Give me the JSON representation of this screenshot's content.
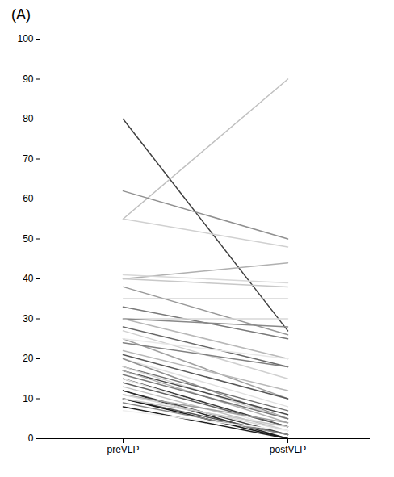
{
  "chart_data": {
    "type": "line",
    "title": "(A)",
    "categories": [
      "preVLP",
      "postVLP"
    ],
    "ylim": [
      0,
      100
    ],
    "yticks": [
      0,
      10,
      20,
      30,
      40,
      50,
      60,
      70,
      80,
      90,
      100
    ],
    "grid": false,
    "series": [
      {
        "color": "#404040",
        "values": [
          80,
          27
        ]
      },
      {
        "color": "#c0c0c0",
        "values": [
          55,
          90
        ]
      },
      {
        "color": "#d0d0d0",
        "values": [
          55,
          48
        ]
      },
      {
        "color": "#909090",
        "values": [
          62,
          50
        ]
      },
      {
        "color": "#b0b0b0",
        "values": [
          40,
          44
        ]
      },
      {
        "color": "#c8c8c8",
        "values": [
          40,
          38
        ]
      },
      {
        "color": "#d8d8d8",
        "values": [
          41,
          39
        ]
      },
      {
        "color": "#989898",
        "values": [
          38,
          26
        ]
      },
      {
        "color": "#c0c0c0",
        "values": [
          35,
          35
        ]
      },
      {
        "color": "#787878",
        "values": [
          33,
          25
        ]
      },
      {
        "color": "#d8d8d8",
        "values": [
          30,
          30
        ]
      },
      {
        "color": "#888888",
        "values": [
          30,
          28
        ]
      },
      {
        "color": "#b8b8b8",
        "values": [
          30,
          20
        ]
      },
      {
        "color": "#686868",
        "values": [
          28,
          18
        ]
      },
      {
        "color": "#d0d0d0",
        "values": [
          27,
          15
        ]
      },
      {
        "color": "#a0a0a0",
        "values": [
          25,
          10
        ]
      },
      {
        "color": "#e8e8e8",
        "values": [
          25,
          20
        ]
      },
      {
        "color": "#808080",
        "values": [
          24,
          18
        ]
      },
      {
        "color": "#b8b8b8",
        "values": [
          22,
          12
        ]
      },
      {
        "color": "#585858",
        "values": [
          21,
          10
        ]
      },
      {
        "color": "#e0e0e0",
        "values": [
          20,
          8
        ]
      },
      {
        "color": "#909090",
        "values": [
          20,
          5
        ]
      },
      {
        "color": "#707070",
        "values": [
          18,
          7
        ]
      },
      {
        "color": "#d0d0d0",
        "values": [
          18,
          5
        ]
      },
      {
        "color": "#484848",
        "values": [
          17,
          6
        ]
      },
      {
        "color": "#b0b0b0",
        "values": [
          17,
          4
        ]
      },
      {
        "color": "#787878",
        "values": [
          16,
          5
        ]
      },
      {
        "color": "#383838",
        "values": [
          15,
          3
        ]
      },
      {
        "color": "#e8e8e8",
        "values": [
          15,
          2
        ]
      },
      {
        "color": "#606060",
        "values": [
          14,
          3
        ]
      },
      {
        "color": "#c0c0c0",
        "values": [
          13,
          2
        ]
      },
      {
        "color": "#404040",
        "values": [
          12,
          1
        ]
      },
      {
        "color": "#282828",
        "values": [
          12,
          0
        ]
      },
      {
        "color": "#a0a0a0",
        "values": [
          11,
          4
        ]
      },
      {
        "color": "#d8d8d8",
        "values": [
          11,
          2
        ]
      },
      {
        "color": "#505050",
        "values": [
          10,
          1
        ]
      },
      {
        "color": "#181818",
        "values": [
          10,
          0
        ]
      },
      {
        "color": "#c8c8c8",
        "values": [
          10,
          3
        ]
      },
      {
        "color": "#888888",
        "values": [
          9,
          1
        ]
      },
      {
        "color": "#202020",
        "values": [
          8,
          0
        ]
      },
      {
        "color": "#f0f0f0",
        "values": [
          7,
          2
        ]
      }
    ]
  }
}
